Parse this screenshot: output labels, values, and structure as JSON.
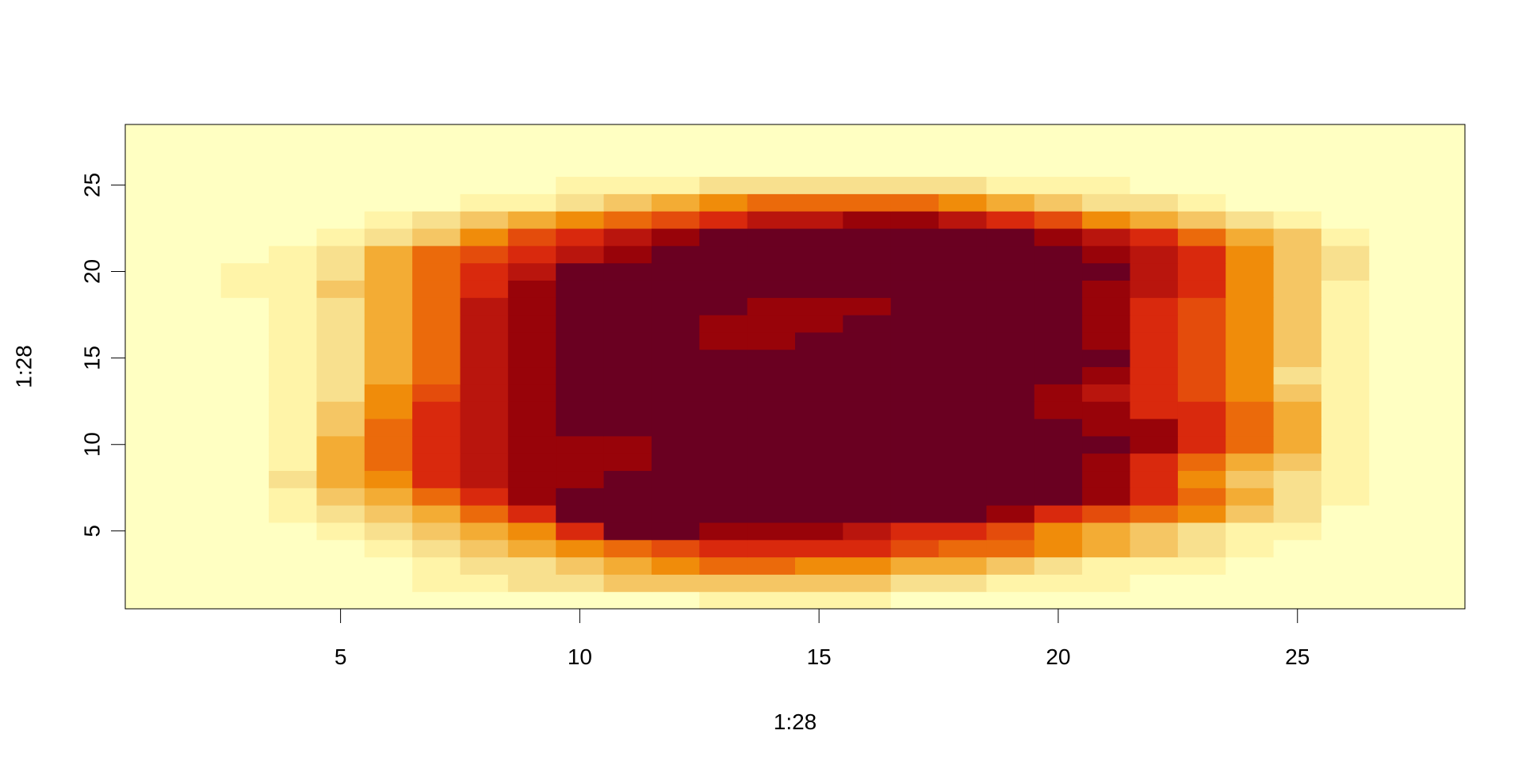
{
  "chart_data": {
    "type": "heatmap",
    "title": "",
    "xlabel": "1:28",
    "ylabel": "1:28",
    "x": [
      1,
      2,
      3,
      4,
      5,
      6,
      7,
      8,
      9,
      10,
      11,
      12,
      13,
      14,
      15,
      16,
      17,
      18,
      19,
      20,
      21,
      22,
      23,
      24,
      25,
      26,
      27,
      28
    ],
    "y": [
      1,
      2,
      3,
      4,
      5,
      6,
      7,
      8,
      9,
      10,
      11,
      12,
      13,
      14,
      15,
      16,
      17,
      18,
      19,
      20,
      21,
      22,
      23,
      24,
      25,
      26,
      27,
      28
    ],
    "xlim": [
      0.5,
      28.5
    ],
    "ylim": [
      0.5,
      28.5
    ],
    "x_ticks": [
      5,
      10,
      15,
      20,
      25
    ],
    "y_ticks": [
      5,
      10,
      15,
      20,
      25
    ],
    "grid": false,
    "legend": "none",
    "color_scale": "heat (light yellow = low, dark red = high)",
    "palette": [
      "#FFFFC2",
      "#FFF4A8",
      "#F8E08E",
      "#F5C664",
      "#F3AC34",
      "#F08C0A",
      "#EB6A0B",
      "#E44C0C",
      "#D9290D",
      "#B9150D",
      "#980309",
      "#6A0021"
    ],
    "grid_rows": [
      "0000000000000000000000000000",
      "0000000000001111000000000000",
      "0000000112222333322111000000",
      "0000000223345566554432211100",
      "0000012234567888876654321000",
      "0000123458890000000987543100",
      "0001224789999999999889643200",
      "0002347989999999999999752000",
      "0002358989999999999999862100",
      "0001358911100000000009874300",
      "0001358900000000000009885300",
      "0001358900000000000001885300",
      "0001358900000000000001885300",
      "0001458900000000000008885300",
      "0000258900000000000000085320",
      "0000358900000111000000885320",
      "0000358900001111100000885320",
      "0000358900000000000000885320",
      "0000358000000000000000885320",
      "0011358900000000000000785300",
      "0000358900000000000000785320",
      "0000358900000000000000785320",
      "0000000000000000000000000000",
      "0000000000000000000000000000",
      "0000000000000000000000000000",
      "0000000000000000000000000000",
      "0000000000000000000000000000",
      "0000000000000000000000000000"
    ],
    "values_rows_bottom_to_top": [
      [
        0,
        0,
        0,
        0,
        0,
        0,
        0,
        0,
        0,
        0,
        0,
        0,
        1,
        1,
        1,
        1,
        0,
        0,
        0,
        0,
        0,
        0,
        0,
        0,
        0,
        0,
        0,
        0
      ],
      [
        0,
        0,
        0,
        0,
        0,
        0,
        1,
        1,
        2,
        2,
        3,
        3,
        3,
        3,
        3,
        3,
        2,
        2,
        1,
        1,
        1,
        0,
        0,
        0,
        0,
        0,
        0,
        0
      ],
      [
        0,
        0,
        0,
        0,
        0,
        0,
        1,
        2,
        2,
        3,
        4,
        5,
        6,
        6,
        5,
        5,
        4,
        4,
        3,
        2,
        1,
        1,
        1,
        0,
        0,
        0,
        0,
        0
      ],
      [
        0,
        0,
        0,
        0,
        0,
        1,
        2,
        3,
        4,
        5,
        6,
        7,
        8,
        8,
        8,
        8,
        7,
        6,
        6,
        5,
        4,
        3,
        2,
        1,
        0,
        0,
        0,
        0
      ],
      [
        0,
        0,
        0,
        0,
        1,
        2,
        3,
        4,
        5,
        8,
        11,
        11,
        10,
        10,
        10,
        9,
        8,
        8,
        7,
        5,
        4,
        3,
        2,
        1,
        1,
        0,
        0,
        0
      ],
      [
        0,
        0,
        0,
        1,
        2,
        3,
        4,
        6,
        8,
        11,
        11,
        11,
        11,
        11,
        11,
        11,
        11,
        11,
        10,
        8,
        7,
        6,
        5,
        3,
        2,
        0,
        0,
        0
      ],
      [
        0,
        0,
        0,
        1,
        3,
        4,
        6,
        8,
        10,
        11,
        11,
        11,
        11,
        11,
        11,
        11,
        11,
        11,
        11,
        11,
        10,
        8,
        6,
        4,
        2,
        1,
        0,
        0
      ],
      [
        0,
        0,
        0,
        2,
        4,
        5,
        8,
        9,
        10,
        10,
        11,
        11,
        11,
        11,
        11,
        11,
        11,
        11,
        11,
        11,
        10,
        8,
        5,
        3,
        2,
        1,
        0,
        0
      ],
      [
        0,
        0,
        0,
        1,
        4,
        6,
        8,
        9,
        10,
        10,
        10,
        11,
        11,
        11,
        11,
        11,
        11,
        11,
        11,
        11,
        10,
        8,
        6,
        4,
        3,
        1,
        0,
        0
      ],
      [
        0,
        0,
        0,
        1,
        4,
        6,
        8,
        9,
        10,
        10,
        10,
        11,
        11,
        11,
        11,
        11,
        11,
        11,
        11,
        11,
        11,
        10,
        8,
        6,
        4,
        1,
        0,
        0
      ],
      [
        0,
        0,
        0,
        1,
        3,
        6,
        8,
        9,
        10,
        11,
        11,
        11,
        11,
        11,
        11,
        11,
        11,
        11,
        11,
        11,
        10,
        10,
        8,
        6,
        4,
        1,
        0,
        0
      ],
      [
        0,
        0,
        0,
        1,
        3,
        5,
        8,
        9,
        10,
        11,
        11,
        11,
        11,
        11,
        11,
        11,
        11,
        11,
        11,
        10,
        10,
        8,
        8,
        6,
        4,
        1,
        0,
        0
      ],
      [
        0,
        0,
        0,
        1,
        2,
        5,
        7,
        9,
        10,
        11,
        11,
        11,
        11,
        11,
        11,
        11,
        11,
        11,
        11,
        10,
        9,
        8,
        7,
        5,
        3,
        1,
        0,
        0
      ],
      [
        0,
        0,
        0,
        1,
        2,
        4,
        6,
        9,
        10,
        11,
        11,
        11,
        11,
        11,
        11,
        11,
        11,
        11,
        11,
        11,
        10,
        8,
        7,
        5,
        2,
        1,
        0,
        0
      ],
      [
        0,
        0,
        0,
        1,
        2,
        4,
        6,
        9,
        10,
        11,
        11,
        11,
        11,
        11,
        11,
        11,
        11,
        11,
        11,
        11,
        11,
        8,
        7,
        5,
        3,
        1,
        0,
        0
      ],
      [
        0,
        0,
        0,
        1,
        2,
        4,
        6,
        9,
        10,
        11,
        11,
        11,
        10,
        10,
        11,
        11,
        11,
        11,
        11,
        11,
        10,
        8,
        7,
        5,
        3,
        1,
        0,
        0
      ],
      [
        0,
        0,
        0,
        1,
        2,
        4,
        6,
        9,
        10,
        11,
        11,
        11,
        10,
        10,
        10,
        11,
        11,
        11,
        11,
        11,
        10,
        8,
        7,
        5,
        3,
        1,
        0,
        0
      ],
      [
        0,
        0,
        0,
        1,
        2,
        4,
        6,
        9,
        10,
        11,
        11,
        11,
        11,
        10,
        10,
        10,
        11,
        11,
        11,
        11,
        10,
        8,
        7,
        5,
        3,
        1,
        0,
        0
      ],
      [
        0,
        0,
        1,
        1,
        3,
        4,
        6,
        8,
        10,
        11,
        11,
        11,
        11,
        11,
        11,
        11,
        11,
        11,
        11,
        11,
        10,
        9,
        8,
        5,
        3,
        1,
        0,
        0
      ],
      [
        0,
        0,
        1,
        1,
        2,
        4,
        6,
        8,
        9,
        11,
        11,
        11,
        11,
        11,
        11,
        11,
        11,
        11,
        11,
        11,
        11,
        9,
        8,
        5,
        3,
        2,
        0,
        0
      ],
      [
        0,
        0,
        0,
        1,
        2,
        4,
        6,
        7,
        8,
        9,
        10,
        11,
        11,
        11,
        11,
        11,
        11,
        11,
        11,
        11,
        10,
        9,
        8,
        5,
        3,
        2,
        0,
        0
      ],
      [
        0,
        0,
        0,
        0,
        1,
        2,
        3,
        5,
        7,
        8,
        9,
        10,
        11,
        11,
        11,
        11,
        11,
        11,
        11,
        10,
        9,
        8,
        6,
        4,
        3,
        1,
        0,
        0
      ],
      [
        0,
        0,
        0,
        0,
        0,
        1,
        2,
        3,
        4,
        5,
        6,
        7,
        8,
        9,
        9,
        10,
        10,
        9,
        8,
        7,
        5,
        4,
        3,
        2,
        1,
        0,
        0,
        0
      ],
      [
        0,
        0,
        0,
        0,
        0,
        0,
        0,
        1,
        1,
        2,
        3,
        4,
        5,
        6,
        6,
        6,
        6,
        5,
        4,
        3,
        2,
        2,
        1,
        0,
        0,
        0,
        0,
        0
      ],
      [
        0,
        0,
        0,
        0,
        0,
        0,
        0,
        0,
        0,
        1,
        1,
        1,
        2,
        2,
        2,
        2,
        2,
        2,
        1,
        1,
        1,
        0,
        0,
        0,
        0,
        0,
        0,
        0
      ],
      [
        0,
        0,
        0,
        0,
        0,
        0,
        0,
        0,
        0,
        0,
        0,
        0,
        0,
        0,
        0,
        0,
        0,
        0,
        0,
        0,
        0,
        0,
        0,
        0,
        0,
        0,
        0,
        0
      ],
      [
        0,
        0,
        0,
        0,
        0,
        0,
        0,
        0,
        0,
        0,
        0,
        0,
        0,
        0,
        0,
        0,
        0,
        0,
        0,
        0,
        0,
        0,
        0,
        0,
        0,
        0,
        0,
        0
      ],
      [
        0,
        0,
        0,
        0,
        0,
        0,
        0,
        0,
        0,
        0,
        0,
        0,
        0,
        0,
        0,
        0,
        0,
        0,
        0,
        0,
        0,
        0,
        0,
        0,
        0,
        0,
        0,
        0
      ]
    ]
  }
}
